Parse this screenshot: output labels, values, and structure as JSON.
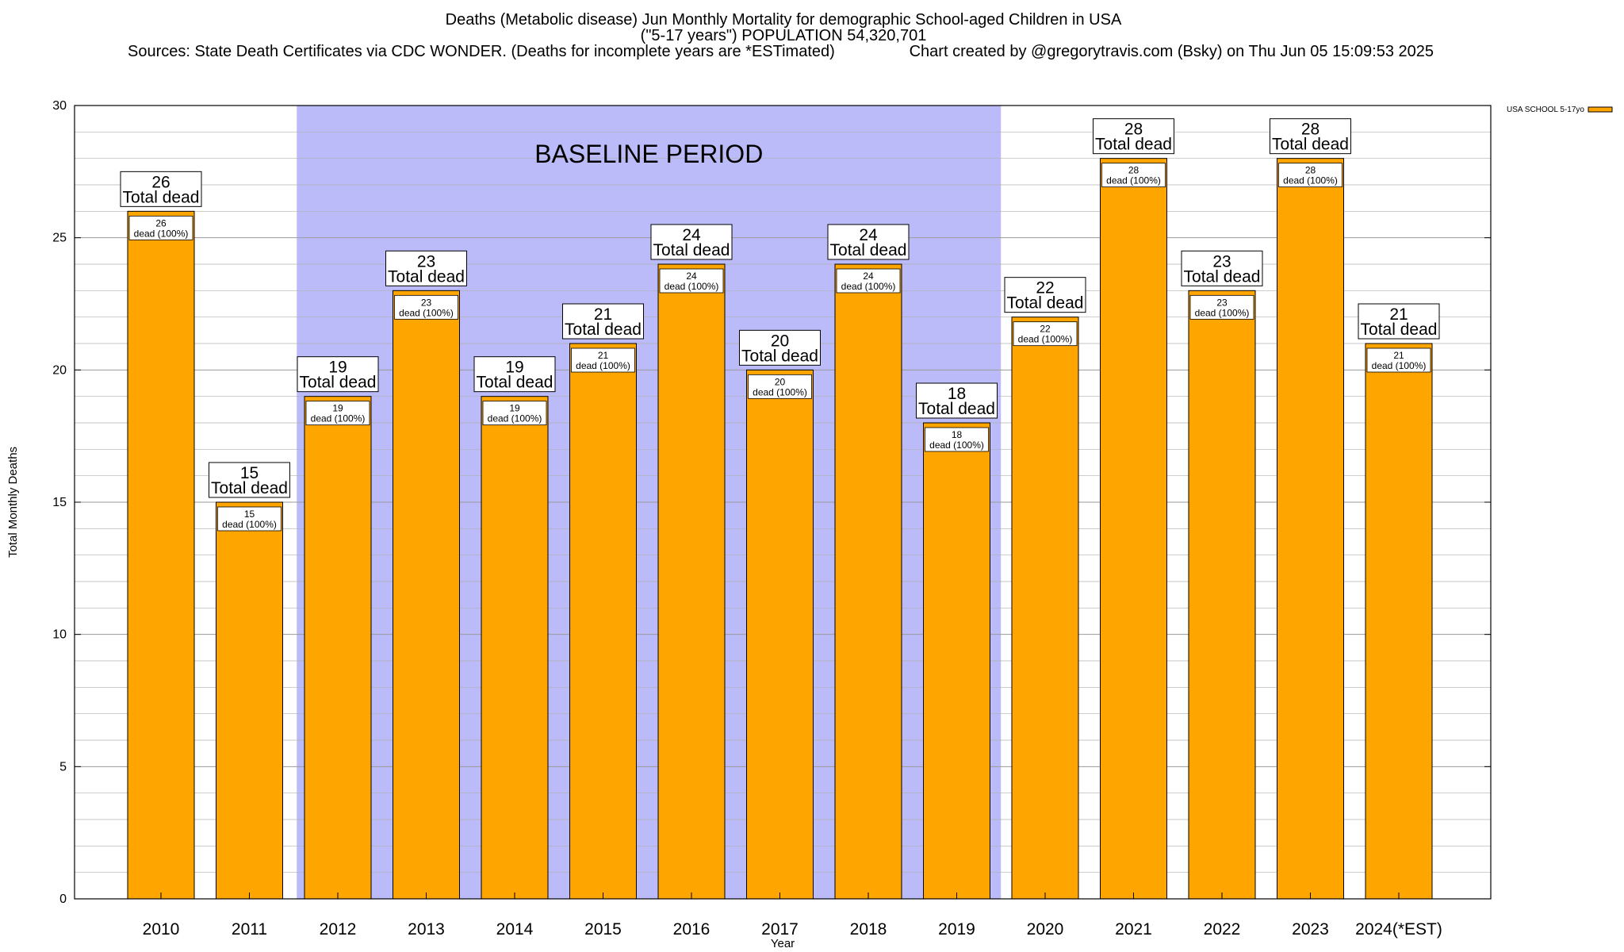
{
  "title_lines": [
    "Deaths (Metabolic disease) Jun Monthly Mortality for demographic School-aged Children in USA",
    "(\"5-17 years\") POPULATION 54,320,701"
  ],
  "sources_text": "Sources: State Death Certificates via CDC WONDER. (Deaths for incomplete years are *ESTimated)",
  "credit_text": "Chart created by @gregorytravis.com (Bsky) on Thu Jun 05 15:09:53 2025",
  "baseline_label": "BASELINE PERIOD",
  "colors": {
    "bar": "#FFA500",
    "baseline": "#BBBBFA",
    "grid": "#B0B0B0"
  },
  "chart_data": {
    "type": "bar",
    "categories": [
      "2010",
      "2011",
      "2012",
      "2013",
      "2014",
      "2015",
      "2016",
      "2017",
      "2018",
      "2019",
      "2020",
      "2021",
      "2022",
      "2023",
      "2024(*EST)"
    ],
    "series": [
      {
        "name": "USA SCHOOL 5-17yo",
        "values": [
          26,
          15,
          19,
          23,
          19,
          21,
          24,
          20,
          24,
          18,
          22,
          28,
          23,
          28,
          21
        ]
      }
    ],
    "xlabel": "Year",
    "ylabel": "Total Monthly Deaths",
    "ylim": [
      0,
      30
    ],
    "yticks": [
      0,
      5,
      10,
      15,
      20,
      25,
      30
    ],
    "baseline_period": [
      "2012",
      "2019"
    ],
    "total_label_suffix": "Total dead",
    "dead_label_suffix": "dead (100%)",
    "grid": true,
    "legend": "top-right"
  }
}
